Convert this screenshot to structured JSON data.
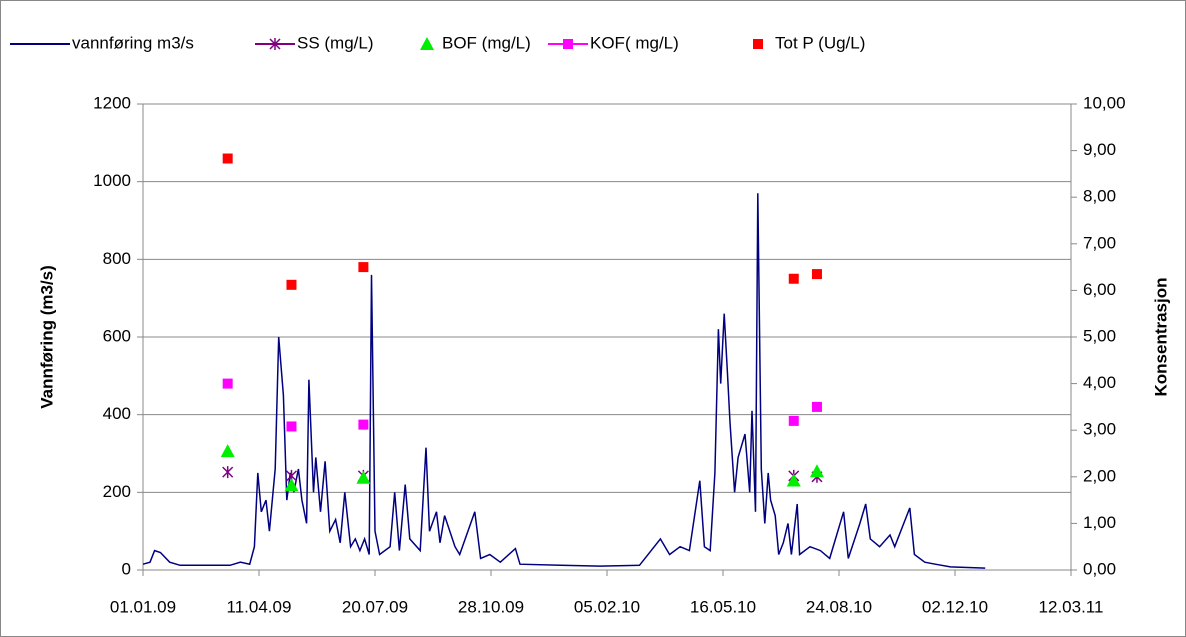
{
  "chart_data": {
    "type": "line",
    "y_label": "Vannføring (m3/s)",
    "y2_label": "Konsentrasjon",
    "xlim": [
      "01.01.09",
      "12.03.11"
    ],
    "xticks": [
      "01.01.09",
      "11.04.09",
      "20.07.09",
      "28.10.09",
      "05.02.10",
      "16.05.10",
      "24.08.10",
      "02.12.10",
      "12.03.11"
    ],
    "ylim": [
      0,
      1200
    ],
    "yticks": [
      0,
      200,
      400,
      600,
      800,
      1000,
      1200
    ],
    "y2lim": [
      0,
      10
    ],
    "y2ticks": [
      {
        "value": 0,
        "label": "0,00"
      },
      {
        "value": 1,
        "label": "1,00"
      },
      {
        "value": 2,
        "label": "2,00"
      },
      {
        "value": 3,
        "label": "3,00"
      },
      {
        "value": 4,
        "label": "4,00"
      },
      {
        "value": 5,
        "label": "5,00"
      },
      {
        "value": 6,
        "label": "6,00"
      },
      {
        "value": 7,
        "label": "7,00"
      },
      {
        "value": 8,
        "label": "8,00"
      },
      {
        "value": 9,
        "label": "9,00"
      },
      {
        "value": 10,
        "label": "10,00"
      }
    ],
    "grid": true,
    "series": [
      {
        "name": "vannføring m3/s",
        "type": "line",
        "color": "#000080",
        "axis": "y",
        "x": [
          "01.01.09",
          "07.01.09",
          "11.01.09",
          "16.01.09",
          "24.01.09",
          "02.02.09",
          "17.03.09",
          "26.03.09",
          "03.04.09",
          "07.04.09",
          "10.04.09",
          "13.04.09",
          "17.04.09",
          "20.04.09",
          "25.04.09",
          "28.04.09",
          "02.05.09",
          "05.05.09",
          "08.05.09",
          "11.05.09",
          "15.05.09",
          "18.05.09",
          "22.05.09",
          "24.05.09",
          "28.05.09",
          "30.05.09",
          "03.06.09",
          "07.06.09",
          "11.06.09",
          "16.06.09",
          "20.06.09",
          "24.06.09",
          "29.06.09",
          "03.07.09",
          "07.07.09",
          "11.07.09",
          "15.07.09",
          "17.07.09",
          "20.07.09",
          "24.07.09",
          "02.08.09",
          "06.08.09",
          "10.08.09",
          "15.08.09",
          "19.08.09",
          "28.08.09",
          "02.09.09",
          "05.09.09",
          "11.09.09",
          "14.09.09",
          "18.09.09",
          "27.09.09",
          "01.10.09",
          "14.10.09",
          "19.10.09",
          "27.10.09",
          "05.11.09",
          "18.11.09",
          "22.11.09",
          "27.12.09",
          "30.01.10",
          "05.03.10",
          "23.03.10",
          "31.03.10",
          "09.04.10",
          "17.04.10",
          "26.04.10",
          "30.04.10",
          "05.05.10",
          "09.05.10",
          "12.05.10",
          "14.05.10",
          "17.05.10",
          "20.05.10",
          "22.05.10",
          "26.05.10",
          "29.05.10",
          "04.06.10",
          "08.06.10",
          "10.06.10",
          "13.06.10",
          "15.06.10",
          "18.06.10",
          "21.06.10",
          "24.06.10",
          "26.06.10",
          "30.06.10",
          "03.07.10",
          "07.07.10",
          "11.07.10",
          "14.07.10",
          "19.07.10",
          "21.07.10",
          "30.07.10",
          "08.08.10",
          "16.08.10",
          "28.08.10",
          "01.09.10",
          "11.09.10",
          "16.09.10",
          "20.09.10",
          "28.09.10",
          "07.10.10",
          "11.10.10",
          "24.10.10",
          "28.10.10",
          "06.11.10",
          "15.11.10",
          "28.11.10",
          "28.12.10"
        ],
        "values": [
          15,
          20,
          50,
          45,
          20,
          12,
          12,
          20,
          15,
          60,
          250,
          150,
          180,
          100,
          260,
          600,
          450,
          180,
          250,
          200,
          260,
          180,
          120,
          490,
          200,
          290,
          150,
          280,
          100,
          130,
          70,
          200,
          60,
          80,
          50,
          80,
          40,
          760,
          100,
          40,
          60,
          200,
          50,
          220,
          80,
          50,
          315,
          100,
          150,
          70,
          140,
          60,
          40,
          150,
          30,
          40,
          20,
          55,
          15,
          12,
          10,
          12,
          80,
          40,
          60,
          50,
          230,
          60,
          50,
          250,
          620,
          480,
          660,
          500,
          380,
          200,
          290,
          350,
          200,
          410,
          150,
          970,
          260,
          120,
          250,
          180,
          140,
          40,
          70,
          120,
          40,
          170,
          40,
          60,
          50,
          30,
          150,
          30,
          120,
          170,
          80,
          60,
          90,
          60,
          160,
          40,
          20,
          15,
          8,
          5
        ]
      },
      {
        "name": "SS (mg/L)",
        "type": "scatter",
        "marker": "star",
        "color": "#800080",
        "axis": "y2",
        "x": [
          "15.03.09",
          "09.05.09",
          "10.07.09",
          "16.07.10",
          "05.08.10"
        ],
        "values": [
          2.1,
          2.02,
          2.02,
          2.02,
          2.0
        ]
      },
      {
        "name": "BOF (mg/L)",
        "type": "scatter",
        "marker": "triangle",
        "color": "#00ee00",
        "axis": "y2",
        "x": [
          "15.03.09",
          "09.05.09",
          "10.07.09",
          "16.07.10",
          "05.08.10"
        ],
        "values": [
          2.55,
          1.82,
          1.98,
          1.92,
          2.12
        ]
      },
      {
        "name": "KOF( mg/L)",
        "type": "scatter",
        "marker": "square",
        "color": "#ff00ff",
        "axis": "y2",
        "x": [
          "15.03.09",
          "09.05.09",
          "10.07.09",
          "16.07.10",
          "05.08.10"
        ],
        "values": [
          4.0,
          3.08,
          3.12,
          3.2,
          3.5
        ]
      },
      {
        "name": "Tot P (Ug/L)",
        "type": "scatter",
        "marker": "square",
        "color": "#ff0000",
        "axis": "y2",
        "x": [
          "15.03.09",
          "09.05.09",
          "10.07.09",
          "16.07.10",
          "05.08.10"
        ],
        "values": [
          8.83,
          6.12,
          6.5,
          6.25,
          6.35
        ]
      }
    ]
  }
}
